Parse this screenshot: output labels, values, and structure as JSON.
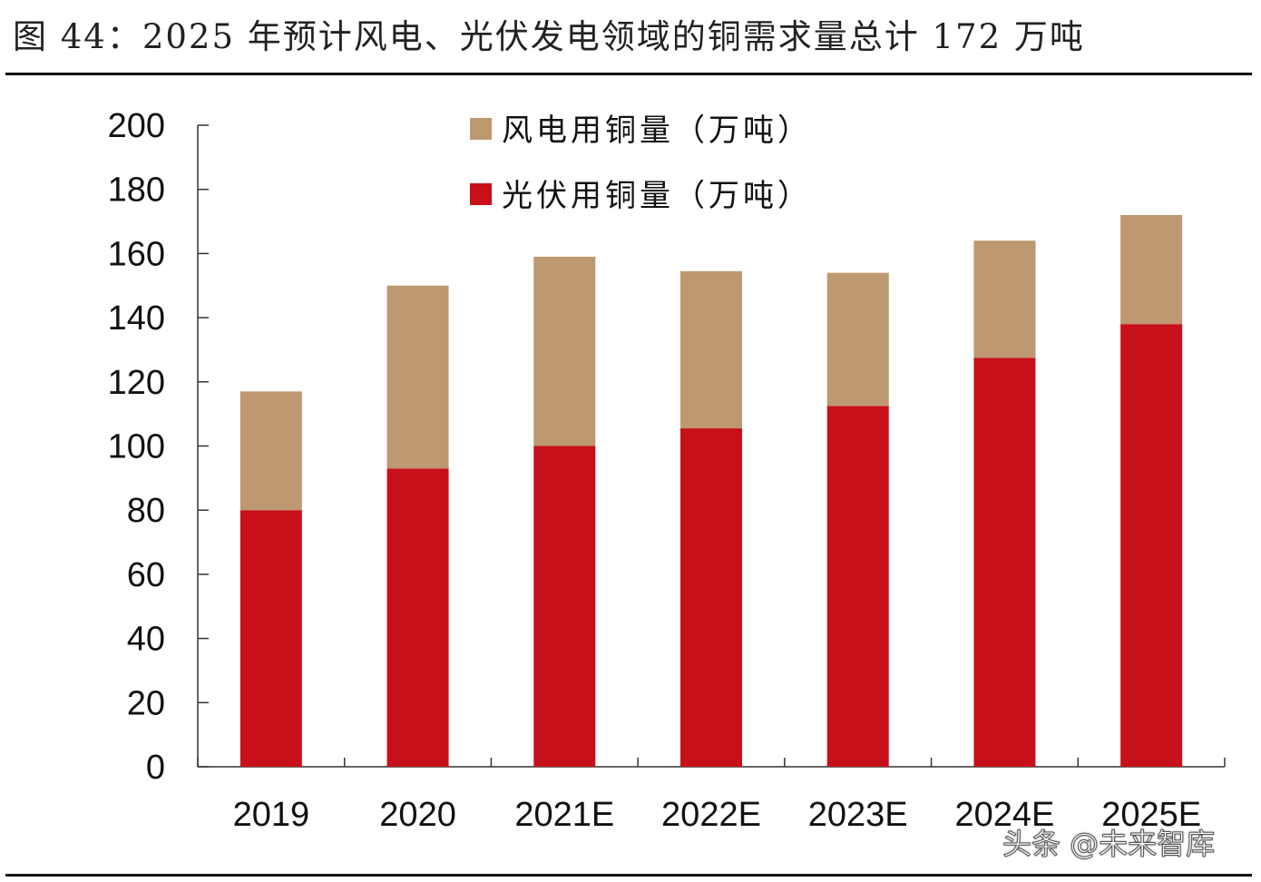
{
  "title": "图 44：2025 年预计风电、光伏发电领域的铜需求量总计 172 万吨",
  "watermark": "头条 @未来智库",
  "chart_data": {
    "type": "bar",
    "stacked": true,
    "categories": [
      "2019",
      "2020",
      "2021E",
      "2022E",
      "2023E",
      "2024E",
      "2025E"
    ],
    "series": [
      {
        "name": "光伏用铜量（万吨）",
        "color": "#c8101a",
        "values": [
          80,
          93,
          100,
          105.5,
          112.5,
          127.5,
          138
        ]
      },
      {
        "name": "风电用铜量（万吨）",
        "color": "#bd9870",
        "values": [
          37,
          57,
          59,
          49,
          41.5,
          36.5,
          34
        ]
      }
    ],
    "ylim": [
      0,
      200
    ],
    "yticks": [
      0,
      20,
      40,
      60,
      80,
      100,
      120,
      140,
      160,
      180,
      200
    ],
    "legend": "top-center",
    "grid": false,
    "xlabel": "",
    "ylabel": ""
  }
}
